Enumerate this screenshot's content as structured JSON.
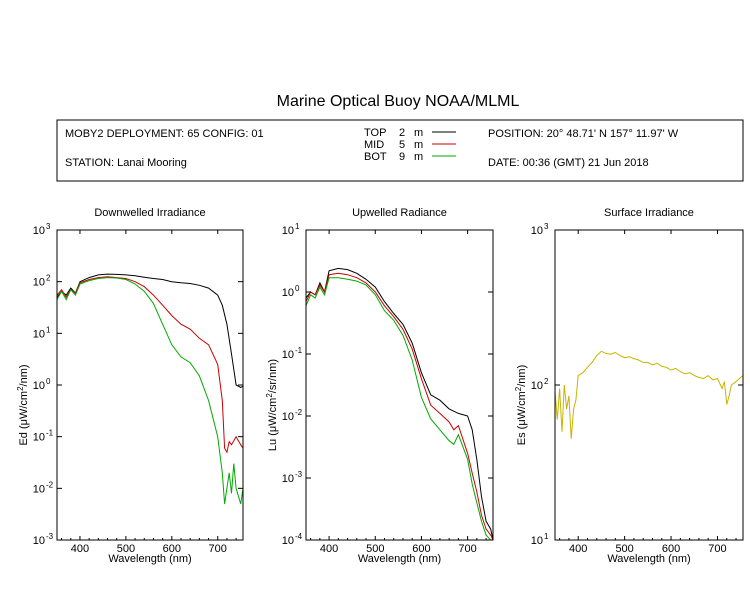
{
  "title": "Marine Optical Buoy NOAA/MLML",
  "info": {
    "deployment": "MOBY2 DEPLOYMENT: 65 CONFIG: 01",
    "station": "STATION: Lanai Mooring",
    "position": "POSITION: 20° 48.71' N   157° 11.97' W",
    "date": "DATE: 00:36 (GMT) 21 Jun 2018",
    "legend": [
      {
        "name": "TOP",
        "depth": "2",
        "unit": "m",
        "color": "#000000"
      },
      {
        "name": "MID",
        "depth": "5",
        "unit": "m",
        "color": "#cc0000"
      },
      {
        "name": "BOT",
        "depth": "9",
        "unit": "m",
        "color": "#00aa00"
      }
    ]
  },
  "chart_data": [
    {
      "type": "line",
      "title": "Downwelled Irradiance",
      "ylabel_pre": "Ed  (",
      "ylabel_mid": "μW/cm",
      "ylabel_sup": "2",
      "ylabel_post": "/nm)",
      "xlabel": "Wavelength (nm)",
      "xlim": [
        350,
        755
      ],
      "ylog": true,
      "ylim": [
        0.001,
        1000
      ],
      "xticks": [
        "400",
        "500",
        "600",
        "700"
      ],
      "xtick_values": [
        400,
        500,
        600,
        700
      ],
      "ytick_exponents": [
        "-3",
        "-2",
        "-1",
        "0",
        "1",
        "2",
        "3"
      ],
      "ytick_values": [
        0.001,
        0.01,
        0.1,
        1,
        10,
        100,
        1000
      ],
      "series": [
        {
          "name": "TOP",
          "color": "#000000",
          "x": [
            350,
            360,
            370,
            380,
            390,
            400,
            420,
            440,
            460,
            480,
            500,
            520,
            540,
            560,
            580,
            600,
            620,
            640,
            660,
            680,
            700,
            710,
            720,
            730,
            740,
            750,
            755
          ],
          "y": [
            50,
            65,
            55,
            75,
            60,
            100,
            120,
            135,
            140,
            138,
            135,
            130,
            122,
            115,
            110,
            100,
            95,
            92,
            85,
            75,
            55,
            35,
            15,
            4,
            1,
            0.9,
            0.95
          ]
        },
        {
          "name": "MID",
          "color": "#cc0000",
          "x": [
            350,
            360,
            370,
            380,
            390,
            400,
            420,
            440,
            460,
            480,
            500,
            520,
            540,
            560,
            580,
            600,
            620,
            640,
            660,
            680,
            700,
            710,
            715,
            720,
            725,
            730,
            740,
            750,
            755
          ],
          "y": [
            55,
            70,
            50,
            70,
            60,
            95,
            110,
            120,
            125,
            120,
            115,
            100,
            80,
            55,
            35,
            22,
            15,
            12,
            8,
            6,
            2.5,
            0.5,
            0.06,
            0.05,
            0.08,
            0.07,
            0.1,
            0.07,
            0.06
          ]
        },
        {
          "name": "BOT",
          "color": "#00aa00",
          "x": [
            350,
            360,
            370,
            380,
            390,
            400,
            420,
            440,
            460,
            480,
            500,
            520,
            540,
            560,
            580,
            600,
            620,
            640,
            660,
            680,
            700,
            710,
            715,
            720,
            725,
            730,
            735,
            740,
            750,
            755
          ],
          "y": [
            45,
            65,
            45,
            70,
            55,
            90,
            105,
            115,
            120,
            118,
            110,
            90,
            65,
            38,
            15,
            6,
            3.5,
            2.7,
            1.5,
            0.5,
            0.1,
            0.02,
            0.005,
            0.01,
            0.02,
            0.008,
            0.03,
            0.01,
            0.005,
            0.01
          ]
        }
      ]
    },
    {
      "type": "line",
      "title": "Upwelled Radiance",
      "ylabel_pre": "Lu  (",
      "ylabel_mid": "μW/cm",
      "ylabel_sup": "2",
      "ylabel_post": "/sr/nm)",
      "xlabel": "Wavelength (nm)",
      "xlim": [
        350,
        755
      ],
      "ylog": true,
      "ylim": [
        0.0001,
        10
      ],
      "xticks": [
        "400",
        "500",
        "600",
        "700"
      ],
      "xtick_values": [
        400,
        500,
        600,
        700
      ],
      "ytick_exponents": [
        "-4",
        "-3",
        "-2",
        "-1",
        "0",
        "1"
      ],
      "ytick_values": [
        0.0001,
        0.001,
        0.01,
        0.1,
        1,
        10
      ],
      "series": [
        {
          "name": "TOP",
          "color": "#000000",
          "x": [
            350,
            360,
            370,
            380,
            390,
            400,
            420,
            440,
            460,
            480,
            500,
            520,
            540,
            560,
            580,
            600,
            620,
            640,
            660,
            680,
            700,
            710,
            720,
            730,
            740,
            750,
            755
          ],
          "y": [
            0.8,
            1.0,
            0.9,
            1.4,
            1.0,
            2.2,
            2.4,
            2.3,
            2.0,
            1.6,
            1.2,
            0.7,
            0.45,
            0.3,
            0.15,
            0.05,
            0.022,
            0.018,
            0.013,
            0.011,
            0.01,
            0.006,
            0.002,
            0.0005,
            0.0002,
            0.00015,
            0.0001
          ]
        },
        {
          "name": "MID",
          "color": "#cc0000",
          "x": [
            350,
            360,
            370,
            380,
            390,
            400,
            420,
            440,
            460,
            480,
            500,
            520,
            540,
            560,
            580,
            600,
            620,
            640,
            660,
            670,
            680,
            700,
            710,
            720,
            730,
            740,
            750,
            755
          ],
          "y": [
            0.7,
            1.0,
            0.9,
            1.3,
            1.0,
            1.9,
            2.0,
            1.9,
            1.7,
            1.4,
            1.0,
            0.6,
            0.4,
            0.25,
            0.12,
            0.04,
            0.015,
            0.011,
            0.008,
            0.006,
            0.007,
            0.0025,
            0.0012,
            0.0006,
            0.00025,
            0.00015,
            0.00012,
            0.0001
          ]
        },
        {
          "name": "BOT",
          "color": "#00aa00",
          "x": [
            350,
            360,
            370,
            380,
            390,
            400,
            420,
            440,
            460,
            480,
            500,
            520,
            540,
            560,
            580,
            600,
            620,
            640,
            660,
            670,
            680,
            700,
            710,
            720,
            730,
            740,
            750,
            755
          ],
          "y": [
            0.6,
            0.9,
            0.8,
            1.2,
            0.9,
            1.7,
            1.7,
            1.6,
            1.5,
            1.3,
            0.9,
            0.5,
            0.35,
            0.2,
            0.08,
            0.02,
            0.009,
            0.006,
            0.004,
            0.0035,
            0.005,
            0.002,
            0.0008,
            0.0004,
            0.0002,
            0.00012,
            0.0001,
            0.0001
          ]
        }
      ]
    },
    {
      "type": "line",
      "title": "Surface Irradiance",
      "ylabel_pre": "Es  (",
      "ylabel_mid": "μW/cm",
      "ylabel_sup": "2",
      "ylabel_post": "/nm)",
      "xlabel": "Wavelength (nm)",
      "xlim": [
        350,
        755
      ],
      "ylog": true,
      "ylim": [
        10,
        1000
      ],
      "xticks": [
        "400",
        "500",
        "600",
        "700"
      ],
      "xtick_values": [
        400,
        500,
        600,
        700
      ],
      "ytick_exponents": [
        "1",
        "2",
        "3"
      ],
      "ytick_values": [
        10,
        100,
        1000
      ],
      "series": [
        {
          "name": "Es",
          "color": "#c8b400",
          "x": [
            350,
            355,
            360,
            365,
            370,
            375,
            380,
            385,
            390,
            395,
            400,
            410,
            420,
            430,
            440,
            450,
            460,
            470,
            480,
            490,
            500,
            510,
            520,
            530,
            540,
            550,
            560,
            570,
            580,
            590,
            600,
            610,
            620,
            630,
            640,
            650,
            660,
            670,
            680,
            690,
            700,
            710,
            715,
            720,
            725,
            730,
            740,
            750,
            755
          ],
          "y": [
            90,
            60,
            95,
            50,
            100,
            70,
            85,
            45,
            70,
            80,
            115,
            120,
            130,
            140,
            155,
            165,
            160,
            158,
            162,
            155,
            150,
            152,
            148,
            145,
            140,
            140,
            135,
            138,
            132,
            130,
            125,
            128,
            122,
            118,
            120,
            115,
            112,
            110,
            115,
            108,
            110,
            95,
            105,
            75,
            85,
            100,
            105,
            112,
            115
          ]
        }
      ]
    }
  ]
}
